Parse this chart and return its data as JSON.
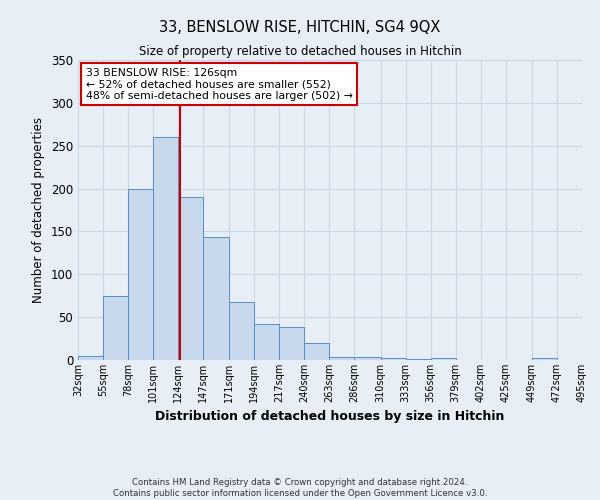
{
  "title": "33, BENSLOW RISE, HITCHIN, SG4 9QX",
  "subtitle": "Size of property relative to detached houses in Hitchin",
  "xlabel": "Distribution of detached houses by size in Hitchin",
  "ylabel": "Number of detached properties",
  "bin_edges": [
    32,
    55,
    78,
    101,
    124,
    147,
    171,
    194,
    217,
    240,
    263,
    286,
    310,
    333,
    356,
    379,
    402,
    425,
    449,
    472,
    495
  ],
  "bar_heights": [
    5,
    75,
    200,
    260,
    190,
    143,
    68,
    42,
    39,
    20,
    3,
    4,
    2,
    1,
    2,
    0,
    0,
    0,
    2,
    0
  ],
  "bar_color": "#c9d9ed",
  "bar_edge_color": "#5a8fc2",
  "property_size": 126,
  "vline_color": "#cc0000",
  "annotation_title": "33 BENSLOW RISE: 126sqm",
  "annotation_line1": "← 52% of detached houses are smaller (552)",
  "annotation_line2": "48% of semi-detached houses are larger (502) →",
  "annotation_box_color": "#ffffff",
  "annotation_box_edge_color": "#cc0000",
  "ylim": [
    0,
    350
  ],
  "yticks": [
    0,
    50,
    100,
    150,
    200,
    250,
    300,
    350
  ],
  "tick_labels": [
    "32sqm",
    "55sqm",
    "78sqm",
    "101sqm",
    "124sqm",
    "147sqm",
    "171sqm",
    "194sqm",
    "217sqm",
    "240sqm",
    "263sqm",
    "286sqm",
    "310sqm",
    "333sqm",
    "356sqm",
    "379sqm",
    "402sqm",
    "425sqm",
    "449sqm",
    "472sqm",
    "495sqm"
  ],
  "footer_line1": "Contains HM Land Registry data © Crown copyright and database right 2024.",
  "footer_line2": "Contains public sector information licensed under the Open Government Licence v3.0.",
  "grid_color": "#c8d8e8",
  "background_color": "#e8eef5"
}
